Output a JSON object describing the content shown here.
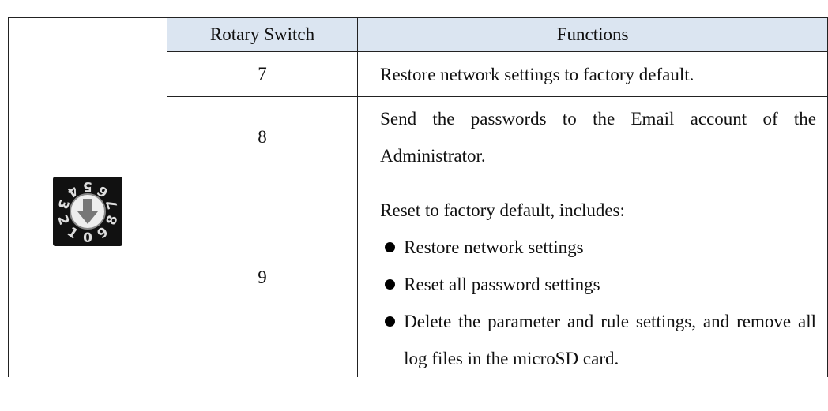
{
  "table": {
    "columns": [
      "Rotary Switch",
      "Functions"
    ],
    "dial_labels": [
      "0",
      "1",
      "2",
      "3",
      "4",
      "5",
      "6",
      "7",
      "8",
      "9"
    ],
    "rows": [
      {
        "switch": "7",
        "text": "Restore network settings to factory default."
      },
      {
        "switch": "8",
        "text": "Send the passwords to the Email account of the Administrator."
      },
      {
        "switch": "9",
        "text": "Reset to factory default, includes:",
        "bullets": [
          "Restore network settings",
          "Reset all password settings",
          "Delete the parameter and rule settings, and remove all log files in the microSD card."
        ]
      }
    ]
  }
}
